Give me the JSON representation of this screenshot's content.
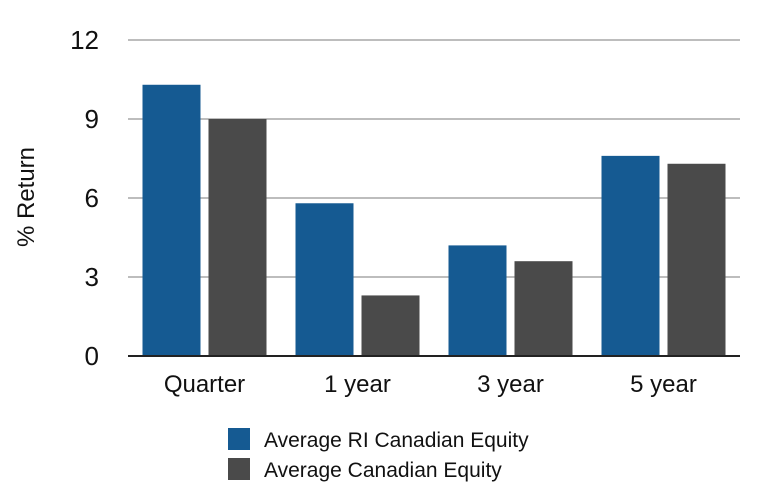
{
  "chart_data": {
    "type": "bar",
    "categories": [
      "Quarter",
      "1 year",
      "3 year",
      "5 year"
    ],
    "series": [
      {
        "name": "Average RI Canadian Equity",
        "color": "#155a92",
        "values": [
          10.3,
          5.8,
          4.2,
          7.6
        ]
      },
      {
        "name": "Average Canadian Equity",
        "color": "#4a4a4a",
        "values": [
          9.0,
          2.3,
          3.6,
          7.3
        ]
      }
    ],
    "title": "",
    "xlabel": "",
    "ylabel": "% Return",
    "ylim": [
      0,
      12
    ],
    "yticks": [
      0,
      3,
      6,
      9,
      12
    ],
    "grid": true,
    "legend_position": "bottom"
  }
}
